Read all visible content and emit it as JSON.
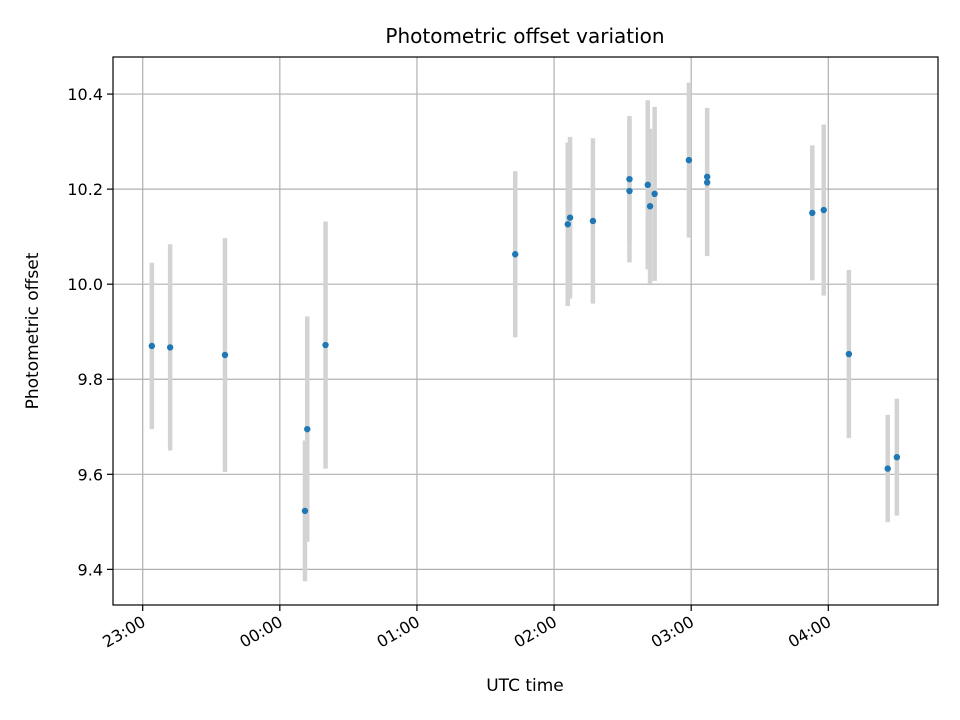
{
  "chart_data": {
    "type": "scatter",
    "title": "Photometric offset variation",
    "xlabel": "UTC time",
    "ylabel": "Photometric offset",
    "x_axis_type": "time",
    "xlim": [
      "22:47",
      "04:48"
    ],
    "ylim": [
      9.325,
      10.478
    ],
    "grid": true,
    "x_ticks": [
      "23:00",
      "00:00",
      "01:00",
      "02:00",
      "03:00",
      "04:00"
    ],
    "y_ticks": [
      "9.4",
      "9.6",
      "9.8",
      "10.0",
      "10.2",
      "10.4"
    ],
    "marker_color": "#1f77b4",
    "errorbar_color": "#d3d3d3",
    "points": [
      {
        "x": "23:04",
        "y": 9.87,
        "yerr": 0.175
      },
      {
        "x": "23:12",
        "y": 9.867,
        "yerr": 0.217
      },
      {
        "x": "23:36",
        "y": 9.851,
        "yerr": 0.246
      },
      {
        "x": "00:11",
        "y": 9.523,
        "yerr": 0.148
      },
      {
        "x": "00:12",
        "y": 9.695,
        "yerr": 0.237
      },
      {
        "x": "00:20",
        "y": 9.872,
        "yerr": 0.26
      },
      {
        "x": "01:43",
        "y": 10.063,
        "yerr": 0.175
      },
      {
        "x": "02:06",
        "y": 10.126,
        "yerr": 0.172
      },
      {
        "x": "02:07",
        "y": 10.14,
        "yerr": 0.17
      },
      {
        "x": "02:17",
        "y": 10.133,
        "yerr": 0.174
      },
      {
        "x": "02:33",
        "y": 10.221,
        "yerr": 0.133
      },
      {
        "x": "02:33",
        "y": 10.196,
        "yerr": 0.15
      },
      {
        "x": "02:41",
        "y": 10.209,
        "yerr": 0.178
      },
      {
        "x": "02:42",
        "y": 10.164,
        "yerr": 0.163
      },
      {
        "x": "02:44",
        "y": 10.19,
        "yerr": 0.183
      },
      {
        "x": "02:59",
        "y": 10.261,
        "yerr": 0.163
      },
      {
        "x": "03:07",
        "y": 10.214,
        "yerr": 0.155
      },
      {
        "x": "03:07",
        "y": 10.226,
        "yerr": 0.145
      },
      {
        "x": "03:53",
        "y": 10.15,
        "yerr": 0.142
      },
      {
        "x": "03:58",
        "y": 10.156,
        "yerr": 0.18
      },
      {
        "x": "04:09",
        "y": 9.853,
        "yerr": 0.177
      },
      {
        "x": "04:26",
        "y": 9.612,
        "yerr": 0.113
      },
      {
        "x": "04:30",
        "y": 9.636,
        "yerr": 0.123
      }
    ]
  }
}
